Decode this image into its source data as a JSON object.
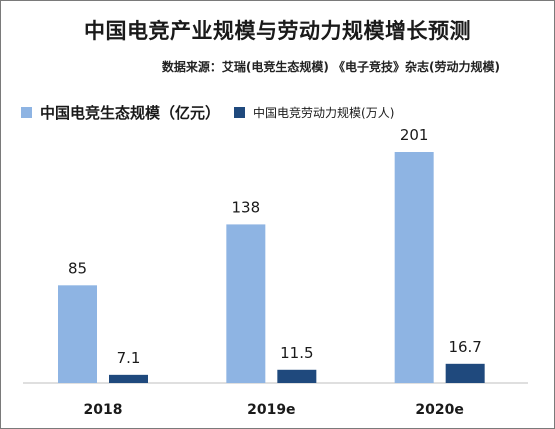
{
  "title": "中国电竞产业规模与劳动力规模增长预测",
  "source": "数据来源：艾瑞(电竞生态规模)  《电子竞技》杂志(劳动力规模)",
  "colors": {
    "series1": "#8eb4e3",
    "series2": "#1f497d",
    "axis": "#bfbfbf",
    "text": "#1a1a1a"
  },
  "chart_data": {
    "type": "bar",
    "categories": [
      "2018",
      "2019e",
      "2020e"
    ],
    "series": [
      {
        "name": "中国电竞生态规模（亿元）",
        "values": [
          85,
          138,
          201
        ]
      },
      {
        "name": "中国电竞劳动力规模(万人)",
        "values": [
          7.1,
          11.5,
          16.7
        ]
      }
    ],
    "data_labels": [
      [
        "85",
        "138",
        "201"
      ],
      [
        "7.1",
        "11.5",
        "16.7"
      ]
    ],
    "ylim": [
      0,
      210
    ],
    "legend_position": "top-left",
    "grid": false
  }
}
